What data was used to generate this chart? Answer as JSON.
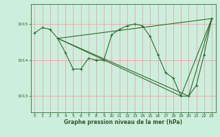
{
  "xlabel": "Graphe pression niveau de la mer (hPa)",
  "bg_color": "#cceedd",
  "line_color": "#2d6a2d",
  "grid_color_v": "#ee9999",
  "grid_color_h": "#ee9999",
  "text_color": "#2d5a2d",
  "ylim": [
    1012.55,
    1015.55
  ],
  "xlim": [
    -0.5,
    23.5
  ],
  "yticks": [
    1013,
    1014,
    1015
  ],
  "xticks": [
    0,
    1,
    2,
    3,
    4,
    5,
    6,
    7,
    8,
    9,
    10,
    11,
    12,
    13,
    14,
    15,
    16,
    17,
    18,
    19,
    20,
    21,
    22,
    23
  ],
  "series_main": {
    "x": [
      0,
      1,
      2,
      3,
      4,
      5,
      6,
      7,
      8,
      9,
      10,
      11,
      12,
      13,
      14,
      15,
      16,
      17,
      18,
      19,
      20,
      21,
      22,
      23
    ],
    "y": [
      1014.75,
      1014.9,
      1014.85,
      1014.6,
      1014.2,
      1013.75,
      1013.75,
      1014.05,
      1014.0,
      1014.0,
      1014.7,
      1014.85,
      1014.95,
      1015.0,
      1014.95,
      1014.65,
      1014.15,
      1013.65,
      1013.5,
      1013.0,
      1013.0,
      1013.3,
      1014.15,
      1015.15
    ]
  },
  "series_fan": [
    {
      "x": [
        3,
        23
      ],
      "y": [
        1014.6,
        1015.15
      ]
    },
    {
      "x": [
        3,
        19,
        23
      ],
      "y": [
        1014.6,
        1013.0,
        1015.15
      ]
    },
    {
      "x": [
        3,
        20,
        23
      ],
      "y": [
        1014.6,
        1013.0,
        1015.15
      ]
    }
  ]
}
